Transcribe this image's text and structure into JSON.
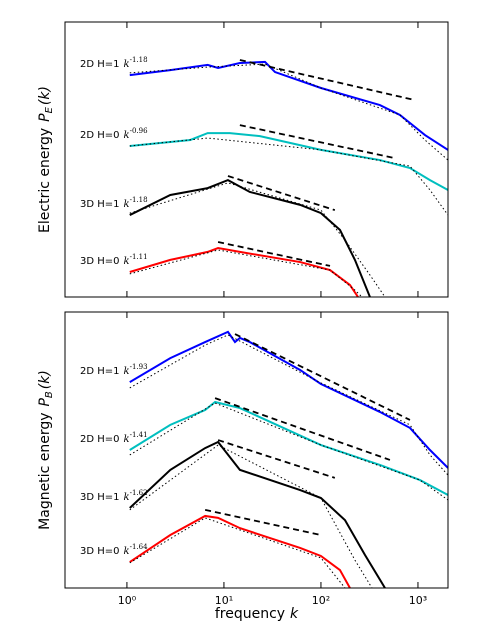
{
  "chart_data": [
    {
      "type": "line",
      "ylabel": "Electric energy",
      "ylabel_symbol": "P",
      "ylabel_sub": "E",
      "ylabel_arg": "(k)",
      "xscale": "log",
      "xlim": [
        0.23,
        2040
      ],
      "ylim": [
        0,
        100
      ],
      "xticks": [
        1,
        10,
        100,
        1000
      ],
      "annotations": [
        {
          "text": "2D H=1",
          "base": "k",
          "exponent": "-1.18"
        },
        {
          "text": "2D H=0",
          "base": "k",
          "exponent": "-0.96"
        },
        {
          "text": "3D H=1",
          "base": "k",
          "exponent": "-1.18"
        },
        {
          "text": "3D H=0",
          "base": "k",
          "exponent": "-1.11"
        }
      ],
      "series": [
        {
          "color": "#0000ff",
          "style": "solid",
          "x": [
            1.07,
            2.8,
            6.8,
            8.7,
            14.6,
            26.5,
            33.6,
            100,
            405,
            652,
            1181,
            2039
          ],
          "values": [
            80.7,
            82.5,
            84.4,
            83.3,
            85.1,
            85.5,
            81.8,
            76.0,
            69.8,
            66.2,
            58.9,
            53.5
          ]
        },
        {
          "color": "#00bfbf",
          "style": "solid",
          "x": [
            1.07,
            4.5,
            6.8,
            11.5,
            23.5,
            100,
            405,
            827,
            1330,
            2039
          ],
          "values": [
            54.9,
            57.1,
            59.6,
            59.6,
            58.5,
            53.5,
            49.8,
            46.9,
            42.5,
            38.9
          ]
        },
        {
          "color": "#000000",
          "style": "solid",
          "x": [
            1.07,
            2.8,
            6.8,
            11.0,
            18.5,
            61,
            100,
            157,
            224,
            320
          ],
          "values": [
            29.8,
            37.1,
            39.6,
            42.5,
            38.2,
            33.5,
            30.5,
            24.4,
            13.5,
            0
          ]
        },
        {
          "color": "#ff0000",
          "style": "solid",
          "x": [
            1.07,
            2.8,
            6.8,
            8.7,
            14.6,
            61,
            124,
            199,
            241
          ],
          "values": [
            9.1,
            13.5,
            16.4,
            17.8,
            16.4,
            12.7,
            9.8,
            4.4,
            0
          ]
        },
        {
          "color": "#000000",
          "style": "dashed",
          "x": [
            14.6,
            931
          ],
          "values": [
            86.2,
            71.6
          ]
        },
        {
          "color": "#000000",
          "style": "dashed",
          "x": [
            14.6,
            579
          ],
          "values": [
            62.5,
            50.5
          ]
        },
        {
          "color": "#000000",
          "style": "dashed",
          "x": [
            11.0,
            139
          ],
          "values": [
            44.0,
            31.6
          ]
        },
        {
          "color": "#000000",
          "style": "dashed",
          "x": [
            8.7,
            124
          ],
          "values": [
            20.0,
            11.3
          ]
        },
        {
          "color": "#000000",
          "style": "dotted",
          "x": [
            1.07,
            6.8,
            26.5,
            100,
            652,
            1181,
            2039
          ],
          "values": [
            81.5,
            83.6,
            84.7,
            76.0,
            66.2,
            57.1,
            49.8
          ]
        },
        {
          "color": "#000000",
          "style": "dotted",
          "x": [
            1.07,
            6.8,
            100,
            827,
            1330,
            2039
          ],
          "values": [
            54.9,
            57.8,
            53.5,
            47.6,
            38.9,
            29.8
          ]
        },
        {
          "color": "#000000",
          "style": "dotted",
          "x": [
            1.07,
            11.0,
            100,
            177,
            320,
            457
          ],
          "values": [
            30.5,
            41.5,
            31.6,
            20.7,
            8.0,
            0
          ]
        },
        {
          "color": "#000000",
          "style": "dotted",
          "x": [
            1.07,
            8.7,
            124,
            224,
            265
          ],
          "values": [
            8.4,
            17.1,
            9.8,
            2.5,
            0
          ]
        }
      ]
    },
    {
      "type": "line",
      "ylabel": "Magnetic energy",
      "ylabel_symbol": "P",
      "ylabel_sub": "B",
      "ylabel_arg": "(k)",
      "xlabel": "frequency",
      "xlabel_symbol": "k",
      "xscale": "log",
      "xlim": [
        0.23,
        2040
      ],
      "ylim": [
        0,
        100
      ],
      "xticks": [
        {
          "value": 1,
          "label": "10⁰"
        },
        {
          "value": 10,
          "label": "10¹"
        },
        {
          "value": 100,
          "label": "10²"
        },
        {
          "value": 1000,
          "label": "10³"
        }
      ],
      "annotations": [
        {
          "text": "2D H=1",
          "base": "k",
          "exponent": "-1.93"
        },
        {
          "text": "2D H=0",
          "base": "k",
          "exponent": "-1.41"
        },
        {
          "text": "3D H=1",
          "base": "k",
          "exponent": "-1.62"
        },
        {
          "text": "3D H=0",
          "base": "k",
          "exponent": "-1.64"
        }
      ],
      "series": [
        {
          "color": "#0000ff",
          "style": "solid",
          "x": [
            1.07,
            2.8,
            6.4,
            11.0,
            13.0,
            14.6,
            18.5,
            61,
            100,
            405,
            827,
            1330,
            2039
          ],
          "values": [
            74.6,
            83.3,
            89.1,
            92.8,
            89.1,
            90.6,
            89.1,
            79.0,
            73.9,
            63.8,
            58.0,
            50.0,
            43.5
          ]
        },
        {
          "color": "#00bfbf",
          "style": "solid",
          "x": [
            1.07,
            2.8,
            6.4,
            8.1,
            14.6,
            100,
            405,
            1049,
            2039
          ],
          "values": [
            50.0,
            59.1,
            64.5,
            67.4,
            65.2,
            51.8,
            44.6,
            39.1,
            33.7
          ]
        },
        {
          "color": "#000000",
          "style": "solid",
          "x": [
            1.07,
            2.8,
            6.4,
            8.7,
            14.6,
            61,
            100,
            177,
            284,
            457
          ],
          "values": [
            29.0,
            42.8,
            50.7,
            52.9,
            42.8,
            35.5,
            32.6,
            24.6,
            12.0,
            0
          ]
        },
        {
          "color": "#ff0000",
          "style": "solid",
          "x": [
            1.07,
            2.8,
            6.4,
            8.7,
            14.6,
            61,
            100,
            157,
            199
          ],
          "values": [
            9.4,
            19.2,
            26.1,
            25.4,
            21.7,
            14.5,
            11.6,
            6.5,
            0
          ]
        },
        {
          "color": "#000000",
          "style": "dashed",
          "x": [
            13.0,
            827
          ],
          "values": [
            92.0,
            60.9
          ]
        },
        {
          "color": "#000000",
          "style": "dashed",
          "x": [
            8.1,
            514
          ],
          "values": [
            68.8,
            46.4
          ]
        },
        {
          "color": "#000000",
          "style": "dashed",
          "x": [
            8.7,
            139
          ],
          "values": [
            53.6,
            39.9
          ]
        },
        {
          "color": "#000000",
          "style": "dashed",
          "x": [
            6.4,
            100
          ],
          "values": [
            28.3,
            19.2
          ]
        },
        {
          "color": "#000000",
          "style": "dotted",
          "x": [
            1.07,
            6.4,
            11.0,
            100,
            827,
            1330,
            2039
          ],
          "values": [
            72.5,
            88.0,
            91.7,
            74.3,
            59.1,
            48.2,
            40.9
          ]
        },
        {
          "color": "#000000",
          "style": "dotted",
          "x": [
            1.07,
            8.1,
            100,
            1049,
            2039
          ],
          "values": [
            48.2,
            67.0,
            51.8,
            39.1,
            31.9
          ]
        },
        {
          "color": "#000000",
          "style": "dotted",
          "x": [
            1.07,
            8.7,
            100,
            224,
            336
          ],
          "values": [
            28.3,
            51.8,
            32.6,
            10.1,
            0
          ]
        },
        {
          "color": "#000000",
          "style": "dotted",
          "x": [
            1.07,
            6.4,
            100,
            177
          ],
          "values": [
            9.1,
            25.4,
            10.9,
            0
          ]
        }
      ]
    }
  ]
}
